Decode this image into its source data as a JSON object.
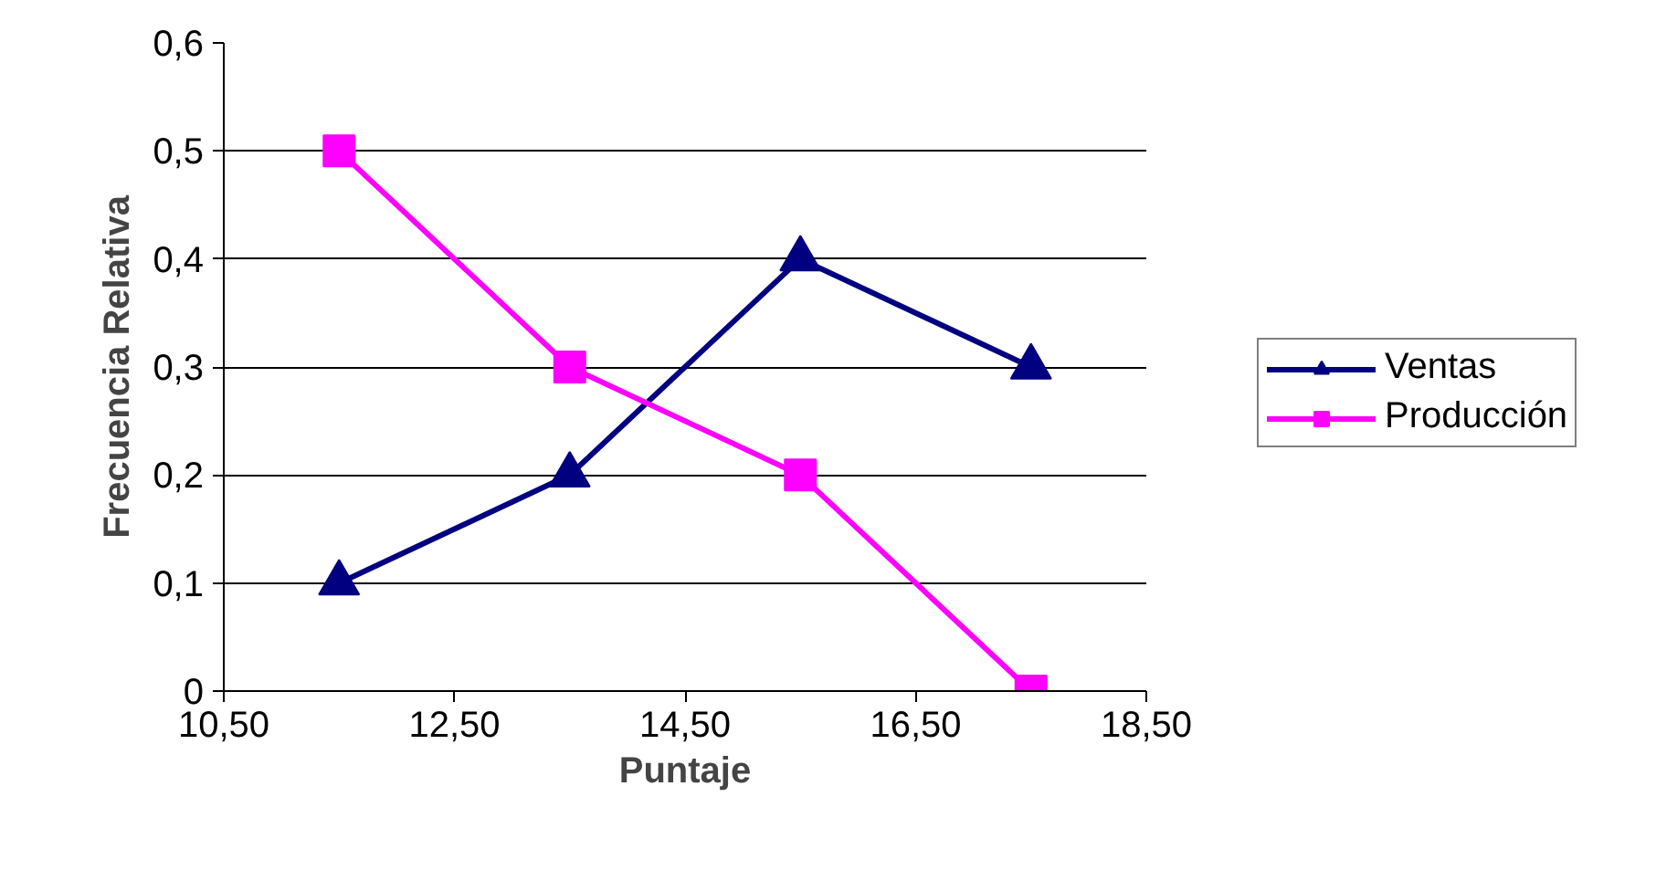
{
  "chart_data": {
    "type": "line",
    "xlabel": "Puntaje",
    "ylabel": "Frecuencia Relativa",
    "x": [
      11.5,
      13.5,
      15.5,
      17.5
    ],
    "series": [
      {
        "name": "Ventas",
        "color": "#000080",
        "values": [
          0.1,
          0.2,
          0.4,
          0.3
        ],
        "marker": "triangle"
      },
      {
        "name": "Producción",
        "color": "#ff00ff",
        "values": [
          0.5,
          0.3,
          0.2,
          0
        ],
        "marker": "square"
      }
    ],
    "xlim": [
      10.5,
      18.5
    ],
    "xticks": [
      {
        "value": 10.5,
        "label": "10,50"
      },
      {
        "value": 12.5,
        "label": "12,50"
      },
      {
        "value": 14.5,
        "label": "14,50"
      },
      {
        "value": 16.5,
        "label": "16,50"
      },
      {
        "value": 18.5,
        "label": "18,50"
      }
    ],
    "ylim": [
      0,
      0.6
    ],
    "yticks": [
      0,
      {
        "value": 0.1,
        "label": "0,1"
      },
      {
        "value": 0.2,
        "label": "0,2"
      },
      {
        "value": 0.3,
        "label": "0,3"
      },
      {
        "value": 0.4,
        "label": "0,4"
      },
      {
        "value": 0.5,
        "label": "0,5"
      },
      {
        "value": 0.6,
        "label": "0,6"
      }
    ],
    "grid": "y",
    "legend": "right",
    "line_style": "solid"
  }
}
